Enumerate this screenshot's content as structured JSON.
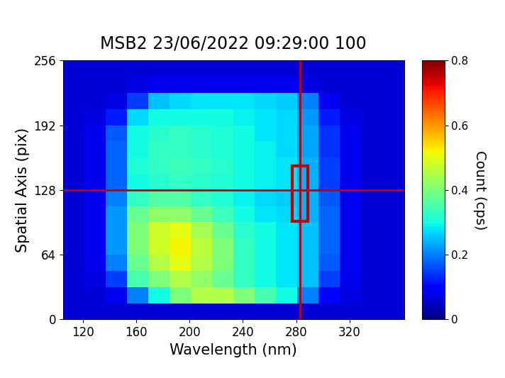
{
  "chart_data": {
    "type": "heatmap",
    "title": "MSB2 23/06/2022 09:29:00 100",
    "x_label": "Wavelength (nm)",
    "y_label": "Spatial Axis (pix)",
    "xlim": [
      105,
      361
    ],
    "ylim": [
      0,
      256
    ],
    "xticks": [
      120,
      160,
      200,
      240,
      280,
      320
    ],
    "yticks": [
      0,
      64,
      128,
      192,
      256
    ],
    "x_edges": [
      105,
      121,
      137,
      153,
      169,
      185,
      201,
      217,
      233,
      249,
      265,
      281,
      297,
      313,
      329,
      345,
      361
    ],
    "y_edges": [
      0,
      16,
      32,
      48,
      64,
      80,
      96,
      112,
      128,
      144,
      160,
      176,
      192,
      208,
      224,
      240,
      256
    ],
    "cells": [
      [
        0.06,
        0.06,
        0.06,
        0.06,
        0.06,
        0.06,
        0.06,
        0.06,
        0.06,
        0.06,
        0.06,
        0.06,
        0.06,
        0.06,
        0.06,
        0.06
      ],
      [
        0.06,
        0.06,
        0.08,
        0.2,
        0.3,
        0.4,
        0.45,
        0.45,
        0.4,
        0.35,
        0.3,
        0.2,
        0.1,
        0.07,
        0.06,
        0.06
      ],
      [
        0.06,
        0.07,
        0.15,
        0.35,
        0.4,
        0.45,
        0.42,
        0.38,
        0.33,
        0.3,
        0.28,
        0.25,
        0.15,
        0.08,
        0.06,
        0.06
      ],
      [
        0.06,
        0.08,
        0.2,
        0.38,
        0.45,
        0.5,
        0.45,
        0.4,
        0.33,
        0.3,
        0.28,
        0.25,
        0.17,
        0.08,
        0.06,
        0.06
      ],
      [
        0.06,
        0.08,
        0.22,
        0.4,
        0.48,
        0.52,
        0.46,
        0.4,
        0.33,
        0.3,
        0.28,
        0.25,
        0.18,
        0.08,
        0.06,
        0.06
      ],
      [
        0.06,
        0.08,
        0.22,
        0.4,
        0.48,
        0.5,
        0.44,
        0.38,
        0.32,
        0.3,
        0.28,
        0.25,
        0.18,
        0.08,
        0.06,
        0.06
      ],
      [
        0.06,
        0.08,
        0.22,
        0.38,
        0.42,
        0.42,
        0.38,
        0.34,
        0.3,
        0.28,
        0.27,
        0.24,
        0.18,
        0.08,
        0.06,
        0.06
      ],
      [
        0.06,
        0.08,
        0.2,
        0.33,
        0.36,
        0.36,
        0.33,
        0.31,
        0.29,
        0.27,
        0.26,
        0.24,
        0.17,
        0.08,
        0.06,
        0.06
      ],
      [
        0.06,
        0.08,
        0.18,
        0.3,
        0.32,
        0.33,
        0.32,
        0.31,
        0.3,
        0.29,
        0.28,
        0.24,
        0.15,
        0.08,
        0.06,
        0.06
      ],
      [
        0.06,
        0.08,
        0.18,
        0.31,
        0.33,
        0.34,
        0.33,
        0.32,
        0.3,
        0.29,
        0.28,
        0.24,
        0.15,
        0.08,
        0.06,
        0.06
      ],
      [
        0.06,
        0.08,
        0.18,
        0.3,
        0.33,
        0.33,
        0.32,
        0.31,
        0.3,
        0.29,
        0.27,
        0.23,
        0.14,
        0.08,
        0.06,
        0.06
      ],
      [
        0.06,
        0.08,
        0.17,
        0.3,
        0.32,
        0.33,
        0.32,
        0.31,
        0.3,
        0.28,
        0.27,
        0.23,
        0.14,
        0.08,
        0.06,
        0.06
      ],
      [
        0.06,
        0.07,
        0.12,
        0.27,
        0.3,
        0.3,
        0.3,
        0.3,
        0.29,
        0.28,
        0.27,
        0.22,
        0.12,
        0.07,
        0.06,
        0.06
      ],
      [
        0.06,
        0.06,
        0.07,
        0.15,
        0.25,
        0.27,
        0.28,
        0.28,
        0.28,
        0.27,
        0.26,
        0.2,
        0.08,
        0.06,
        0.06,
        0.06
      ],
      [
        0.06,
        0.06,
        0.06,
        0.07,
        0.08,
        0.08,
        0.08,
        0.08,
        0.08,
        0.08,
        0.08,
        0.07,
        0.06,
        0.06,
        0.06,
        0.06
      ],
      [
        0.06,
        0.06,
        0.06,
        0.06,
        0.06,
        0.06,
        0.06,
        0.06,
        0.06,
        0.06,
        0.06,
        0.06,
        0.06,
        0.06,
        0.06,
        0.06
      ]
    ],
    "colorbar": {
      "label": "Count (cps)",
      "range": [
        0,
        0.8
      ],
      "ticks": [
        0,
        0.2,
        0.4,
        0.6,
        0.8
      ]
    },
    "crosshair": {
      "x": 283,
      "y": 128
    },
    "roi": {
      "x": [
        277,
        289
      ],
      "y": [
        97,
        152
      ]
    }
  }
}
